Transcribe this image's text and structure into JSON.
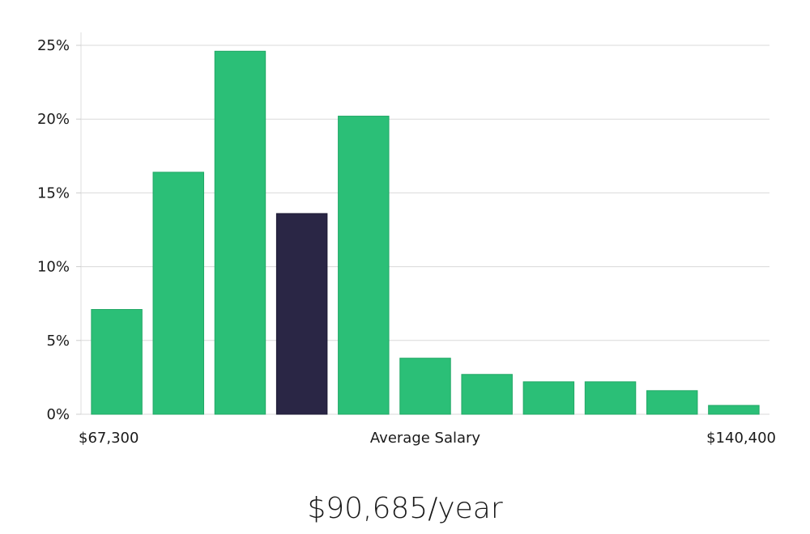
{
  "chart_data": {
    "type": "bar",
    "values": [
      7.1,
      16.4,
      24.6,
      13.6,
      20.2,
      3.8,
      2.7,
      2.2,
      2.2,
      1.6,
      0.6
    ],
    "highlight_index": 3,
    "colors": {
      "bar": "#2bbf77",
      "highlight": "#2a2645",
      "grid": "#d9d9d9"
    },
    "ylim": [
      0,
      25
    ],
    "yticks": [
      {
        "value": 0,
        "label": "0%"
      },
      {
        "value": 5,
        "label": "5%"
      },
      {
        "value": 10,
        "label": "10%"
      },
      {
        "value": 15,
        "label": "15%"
      },
      {
        "value": 20,
        "label": "20%"
      },
      {
        "value": 25,
        "label": "25%"
      }
    ],
    "x_min_label": "$67,300",
    "x_center_label": "Average Salary",
    "x_max_label": "$140,400",
    "grid": true
  },
  "summary": "$90,685/year"
}
